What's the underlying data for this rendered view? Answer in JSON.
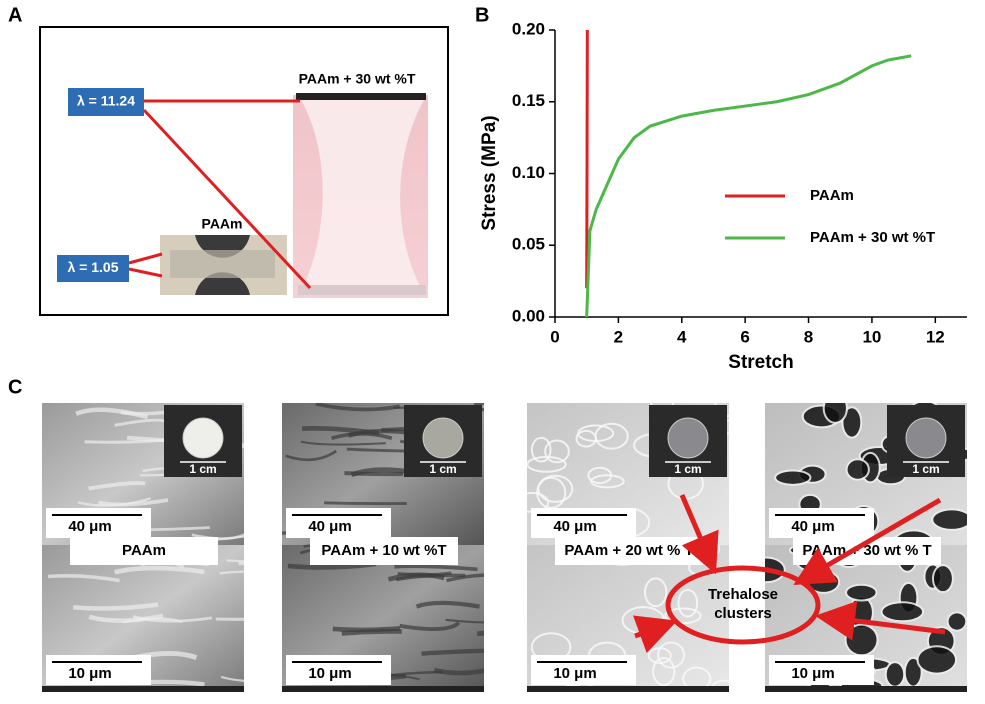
{
  "panel_labels": [
    "A",
    "B",
    "C"
  ],
  "panel_a": {
    "samples": [
      {
        "label": "PAAm + 30 wt %T",
        "stretch": "λ = 11.24"
      },
      {
        "label": "PAAm",
        "stretch": "λ = 1.05"
      }
    ]
  },
  "chart_data": {
    "type": "line",
    "x_label": "Stretch",
    "y_label": "Stress (MPa)",
    "xlim": [
      0,
      13
    ],
    "ylim": [
      0,
      0.2
    ],
    "xticks": [
      0,
      2,
      4,
      6,
      8,
      10,
      12
    ],
    "yticks": [
      {
        "value": 0,
        "label": "0.00"
      },
      0.05,
      {
        "value": 0.1,
        "label": "0.10"
      },
      0.15,
      {
        "value": 0.2,
        "label": "0.20"
      }
    ],
    "series": [
      {
        "name": "PAAm",
        "color": "#e02020",
        "x": [
          1.0,
          1.01,
          1.02
        ],
        "values": [
          0.02,
          0.1,
          0.2
        ]
      },
      {
        "name": "PAAm + 30 wt %T",
        "color": "#4cb848",
        "x": [
          1.0,
          1.1,
          1.3,
          1.6,
          2.0,
          2.5,
          3.0,
          4.0,
          5.0,
          6.0,
          7.0,
          8.0,
          9.0,
          10.0,
          10.5,
          11.0,
          11.24
        ],
        "values": [
          0.0,
          0.06,
          0.075,
          0.09,
          0.11,
          0.125,
          0.133,
          0.14,
          0.144,
          0.147,
          0.15,
          0.155,
          0.163,
          0.175,
          0.179,
          0.181,
          0.182
        ]
      }
    ]
  },
  "panel_c": {
    "columns": [
      {
        "label": "PAAm",
        "scale_top": "40 μm",
        "scale_bottom": "10 μm",
        "inset_scale": "1 cm"
      },
      {
        "label": "PAAm + 10 wt %T",
        "scale_top": "40 μm",
        "scale_bottom": "10 μm",
        "inset_scale": "1 cm"
      },
      {
        "label": "PAAm + 20 wt % T",
        "scale_top": "40 μm",
        "scale_bottom": "10 μm",
        "inset_scale": "1 cm"
      },
      {
        "label": "PAAm + 30 wt % T",
        "scale_top": "40 μm",
        "scale_bottom": "10 μm",
        "inset_scale": "1 cm"
      }
    ],
    "annotation": "Trehalose clusters"
  }
}
